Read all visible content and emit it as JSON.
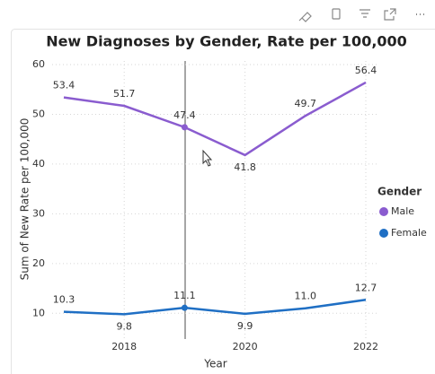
{
  "chart_data": {
    "type": "line",
    "title": "New Diagnoses by Gender, Rate per 100,000",
    "x_label": "Year",
    "y_label": "Sum of New Rate per 100,000",
    "x": [
      2017,
      2018,
      2019,
      2020,
      2021,
      2022
    ],
    "xlim": [
      2017,
      2022
    ],
    "xticks": [
      2018,
      2020,
      2022
    ],
    "ylim": [
      5,
      60
    ],
    "yticks": [
      10,
      20,
      30,
      40,
      50,
      60
    ],
    "grid": true,
    "legend_title": "Gender",
    "legend_position": "right",
    "series": [
      {
        "name": "Male",
        "color": "#8a5ccf",
        "values": [
          53.4,
          51.7,
          47.4,
          41.8,
          49.7,
          56.4
        ]
      },
      {
        "name": "Female",
        "color": "#1f6fc4",
        "values": [
          10.3,
          9.8,
          11.1,
          9.9,
          11.0,
          12.7
        ],
        "value_labels": [
          "10.3",
          "9.8",
          "11.1",
          "9.9",
          "11.0",
          "12.7"
        ]
      }
    ]
  }
}
